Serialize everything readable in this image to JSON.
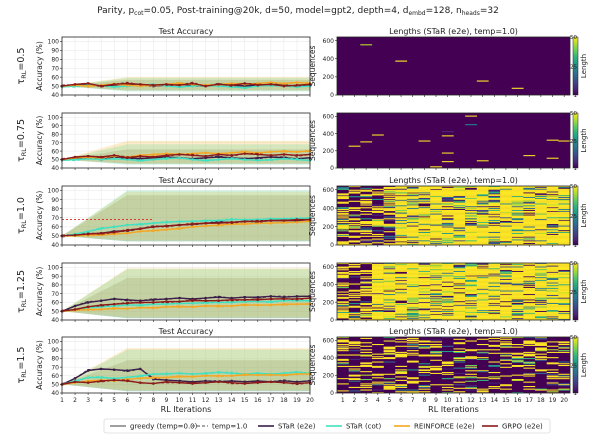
{
  "figure": {
    "suptitle_prefix": "Parity, p",
    "suptitle_sub": "cot",
    "suptitle_mid": "=0.05, Post-training@20k, d=50, model=gpt2, depth=4, d",
    "suptitle_sub2": "embd",
    "suptitle_mid2": "=128, n",
    "suptitle_sub3": "heads",
    "suptitle_end": "=32"
  },
  "legend": {
    "items": [
      {
        "label": "greedy (temp=0.0)",
        "color": "#888888",
        "style": "solid"
      },
      {
        "label": "temp=1.0",
        "color": "#888888",
        "style": "dashed"
      },
      {
        "label": "STaR (e2e)",
        "color": "#3b1f4a",
        "style": "solid"
      },
      {
        "label": "STaR (cot)",
        "color": "#40e0c0",
        "style": "solid"
      },
      {
        "label": "REINFORCE (e2e)",
        "color": "#f5a623",
        "style": "solid"
      },
      {
        "label": "GRPO (e2e)",
        "color": "#8b1a1a",
        "style": "solid"
      }
    ]
  },
  "chart_data": [
    {
      "type": "line",
      "title": "Test Accuracy",
      "row_label": "τ_RL=0.5",
      "row_tau": "0.5",
      "xlabel": "",
      "ylabel": "Accuracy (%)",
      "xlim": [
        1,
        20
      ],
      "ylim": [
        40,
        105
      ],
      "yticks": [
        40,
        50,
        60,
        70,
        80,
        90,
        100
      ],
      "x": [
        1,
        2,
        3,
        4,
        5,
        6,
        7,
        8,
        9,
        10,
        11,
        12,
        13,
        14,
        15,
        16,
        17,
        18,
        19,
        20
      ],
      "series": [
        {
          "name": "STaR (e2e)",
          "values": [
            50,
            51,
            52,
            50,
            51,
            52,
            51,
            50,
            51,
            52,
            51,
            50,
            52,
            51,
            50,
            51,
            52,
            51,
            50,
            51
          ]
        },
        {
          "name": "STaR (cot)",
          "values": [
            49,
            50,
            51,
            50,
            49,
            50,
            51,
            52,
            50,
            49,
            50,
            51,
            50,
            49,
            48,
            50,
            51,
            50,
            49,
            50
          ]
        },
        {
          "name": "REINFORCE (e2e)",
          "values": [
            50,
            51,
            50,
            51,
            52,
            51,
            50,
            51,
            52,
            53,
            52,
            51,
            52,
            53,
            52,
            53,
            54,
            53,
            54,
            53
          ]
        },
        {
          "name": "GRPO (e2e)",
          "values": [
            50,
            52,
            53,
            50,
            52,
            53,
            52,
            51,
            52,
            51,
            53,
            50,
            52,
            51,
            53,
            51,
            52,
            50,
            51,
            52
          ]
        }
      ],
      "bands": [
        [
          45,
          57
        ],
        [
          44,
          59
        ],
        [
          45,
          60
        ]
      ]
    },
    {
      "type": "line",
      "title": "",
      "row_label": "τ_RL=0.75",
      "row_tau": "0.75",
      "xlabel": "",
      "ylabel": "Accuracy (%)",
      "xlim": [
        1,
        20
      ],
      "ylim": [
        40,
        105
      ],
      "yticks": [
        40,
        50,
        60,
        70,
        80,
        90,
        100
      ],
      "x": [
        1,
        2,
        3,
        4,
        5,
        6,
        7,
        8,
        9,
        10,
        11,
        12,
        13,
        14,
        15,
        16,
        17,
        18,
        19,
        20
      ],
      "series": [
        {
          "name": "STaR (e2e)",
          "values": [
            50,
            51,
            52,
            50,
            53,
            52,
            51,
            52,
            53,
            52,
            51,
            52,
            53,
            52,
            51,
            52,
            53,
            52,
            51,
            52
          ]
        },
        {
          "name": "STaR (cot)",
          "values": [
            49,
            50,
            51,
            50,
            51,
            50,
            49,
            50,
            51,
            52,
            50,
            49,
            50,
            51,
            50,
            49,
            50,
            51,
            50,
            49
          ]
        },
        {
          "name": "REINFORCE (e2e)",
          "values": [
            50,
            52,
            53,
            52,
            54,
            53,
            55,
            56,
            57,
            56,
            57,
            58,
            57,
            58,
            59,
            58,
            59,
            60,
            59,
            60
          ]
        },
        {
          "name": "GRPO (e2e)",
          "values": [
            50,
            53,
            54,
            53,
            55,
            52,
            54,
            53,
            55,
            56,
            55,
            54,
            56,
            55,
            57,
            56,
            55,
            56,
            55,
            56
          ]
        }
      ],
      "bands": [
        [
          45,
          62
        ],
        [
          44,
          68
        ],
        [
          45,
          72
        ]
      ]
    },
    {
      "type": "line",
      "title": "Test Accuracy",
      "row_label": "τ_RL=1.0",
      "row_tau": "1.0",
      "xlabel": "",
      "ylabel": "Accuracy (%)",
      "xlim": [
        1,
        20
      ],
      "ylim": [
        40,
        105
      ],
      "yticks": [
        40,
        50,
        60,
        70,
        80,
        90,
        100
      ],
      "x": [
        1,
        2,
        3,
        4,
        5,
        6,
        7,
        8,
        9,
        10,
        11,
        12,
        13,
        14,
        15,
        16,
        17,
        18,
        19,
        20
      ],
      "series": [
        {
          "name": "STaR (e2e)",
          "values": [
            50,
            51,
            52,
            53,
            55,
            56,
            58,
            60,
            61,
            62,
            63,
            64,
            65,
            65,
            66,
            66,
            67,
            67,
            67,
            68
          ]
        },
        {
          "name": "STaR (cot)",
          "values": [
            50,
            52,
            55,
            58,
            60,
            62,
            63,
            64,
            65,
            66,
            66,
            67,
            67,
            68,
            68,
            68,
            69,
            69,
            69,
            70
          ]
        },
        {
          "name": "REINFORCE (e2e)",
          "values": [
            50,
            50,
            51,
            51,
            52,
            53,
            55,
            56,
            57,
            58,
            60,
            61,
            62,
            63,
            63,
            64,
            64,
            65,
            65,
            66
          ]
        },
        {
          "name": "GRPO (e2e)",
          "values": [
            50,
            51,
            52,
            53,
            54,
            56,
            58,
            60,
            61,
            62,
            63,
            64,
            64,
            65,
            66,
            66,
            67,
            67,
            68,
            68
          ]
        }
      ],
      "reference_line": 68,
      "bands": [
        [
          44,
          95
        ],
        [
          44,
          100
        ],
        [
          45,
          99
        ]
      ]
    },
    {
      "type": "line",
      "title": "",
      "row_label": "τ_RL=1.25",
      "row_tau": "1.25",
      "xlabel": "",
      "ylabel": "Accuracy (%)",
      "xlim": [
        1,
        20
      ],
      "ylim": [
        40,
        105
      ],
      "yticks": [
        40,
        50,
        60,
        70,
        80,
        90,
        100
      ],
      "x": [
        1,
        2,
        3,
        4,
        5,
        6,
        7,
        8,
        9,
        10,
        11,
        12,
        13,
        14,
        15,
        16,
        17,
        18,
        19,
        20
      ],
      "series": [
        {
          "name": "STaR (e2e)",
          "values": [
            50,
            56,
            60,
            62,
            64,
            63,
            62,
            63,
            64,
            65,
            64,
            65,
            66,
            65,
            66,
            66,
            67,
            66,
            67,
            67
          ]
        },
        {
          "name": "STaR (cot)",
          "values": [
            50,
            52,
            54,
            55,
            56,
            57,
            57,
            58,
            58,
            59,
            59,
            60,
            60,
            60,
            61,
            61,
            61,
            62,
            62,
            62
          ]
        },
        {
          "name": "REINFORCE (e2e)",
          "values": [
            50,
            51,
            52,
            52,
            53,
            53,
            54,
            54,
            55,
            55,
            55,
            56,
            56,
            56,
            57,
            57,
            57,
            58,
            58,
            58
          ]
        },
        {
          "name": "GRPO (e2e)",
          "values": [
            50,
            52,
            55,
            57,
            58,
            59,
            60,
            60,
            61,
            61,
            62,
            62,
            62,
            63,
            63,
            63,
            64,
            64,
            64,
            65
          ]
        }
      ],
      "bands": [
        [
          42,
          88
        ],
        [
          42,
          98
        ],
        [
          43,
          99
        ]
      ]
    },
    {
      "type": "line",
      "title": "Test Accuracy",
      "row_label": "τ_RL=1.5",
      "row_tau": "1.5",
      "xlabel": "RL Iterations",
      "ylabel": "Accuracy (%)",
      "xlim": [
        1,
        20
      ],
      "ylim": [
        40,
        105
      ],
      "yticks": [
        40,
        50,
        60,
        70,
        80,
        90,
        100
      ],
      "x": [
        1,
        2,
        3,
        4,
        5,
        6,
        7,
        8,
        9,
        10,
        11,
        12,
        13,
        14,
        15,
        16,
        17,
        18,
        19,
        20
      ],
      "series": [
        {
          "name": "STaR (e2e)",
          "values": [
            50,
            57,
            66,
            68,
            67,
            66,
            68,
            56,
            55,
            54,
            53,
            54,
            53,
            54,
            53,
            54,
            53,
            54,
            53,
            54
          ]
        },
        {
          "name": "STaR (cot)",
          "values": [
            50,
            54,
            58,
            58,
            57,
            58,
            60,
            62,
            62,
            63,
            62,
            63,
            64,
            63,
            62,
            63,
            62,
            63,
            64,
            63
          ]
        },
        {
          "name": "REINFORCE (e2e)",
          "values": [
            50,
            52,
            54,
            55,
            54,
            56,
            57,
            58,
            58,
            59,
            59,
            60,
            60,
            60,
            61,
            61,
            61,
            61,
            62,
            62
          ]
        },
        {
          "name": "GRPO (e2e)",
          "values": [
            50,
            53,
            52,
            54,
            55,
            54,
            52,
            51,
            53,
            52,
            51,
            52,
            53,
            52,
            51,
            52,
            53,
            52,
            51,
            52
          ]
        }
      ],
      "bands": [
        [
          42,
          78
        ],
        [
          42,
          90
        ],
        [
          43,
          92
        ]
      ]
    },
    {
      "type": "heatmap",
      "title": "Lengths (STaR (e2e), temp=1.0)",
      "row_tau": "0.5",
      "xlabel": "",
      "ylabel": "Sequences",
      "xlim": [
        1,
        20
      ],
      "ylim": [
        0,
        640
      ],
      "yticks": [
        0,
        200,
        400,
        600
      ],
      "colorbar": {
        "label": "Length",
        "ticks": [
          1,
          25,
          50
        ],
        "range": [
          1,
          50
        ]
      },
      "density": 0.003,
      "bright_cols": 0
    },
    {
      "type": "heatmap",
      "title": "",
      "row_tau": "0.75",
      "xlabel": "",
      "ylabel": "Sequences",
      "xlim": [
        1,
        20
      ],
      "ylim": [
        0,
        640
      ],
      "yticks": [
        0,
        200,
        400,
        600
      ],
      "colorbar": {
        "label": "Length",
        "ticks": [
          1,
          25,
          50
        ],
        "range": [
          1,
          50
        ]
      },
      "density": 0.01,
      "bright_cols": 0
    },
    {
      "type": "heatmap",
      "title": "Lengths (STaR (e2e), temp=1.0)",
      "row_tau": "1.0",
      "xlabel": "",
      "ylabel": "Sequences",
      "xlim": [
        1,
        20
      ],
      "ylim": [
        0,
        640
      ],
      "yticks": [
        0,
        200,
        400,
        600
      ],
      "colorbar": {
        "label": "Length",
        "ticks": [
          1,
          25,
          50
        ],
        "range": [
          1,
          50
        ]
      },
      "density": 0.5,
      "bright_cols": 5
    },
    {
      "type": "heatmap",
      "title": "",
      "row_tau": "1.25",
      "xlabel": "",
      "ylabel": "Sequences",
      "xlim": [
        1,
        20
      ],
      "ylim": [
        0,
        640
      ],
      "yticks": [
        0,
        200,
        400,
        600
      ],
      "colorbar": {
        "label": "Length",
        "ticks": [
          1,
          25,
          50
        ],
        "range": [
          1,
          50
        ]
      },
      "density": 0.55,
      "bright_cols": 3
    },
    {
      "type": "heatmap",
      "title": "Lengths (STaR (e2e), temp=1.0)",
      "row_tau": "1.5",
      "xlabel": "RL Iterations",
      "ylabel": "Sequences",
      "xlim": [
        1,
        20
      ],
      "ylim": [
        0,
        640
      ],
      "yticks": [
        0,
        200,
        400,
        600
      ],
      "colorbar": {
        "label": "Length",
        "ticks": [
          1,
          25,
          50
        ],
        "range": [
          1,
          50
        ]
      },
      "density": 0.3,
      "bright_cols": 0
    }
  ]
}
